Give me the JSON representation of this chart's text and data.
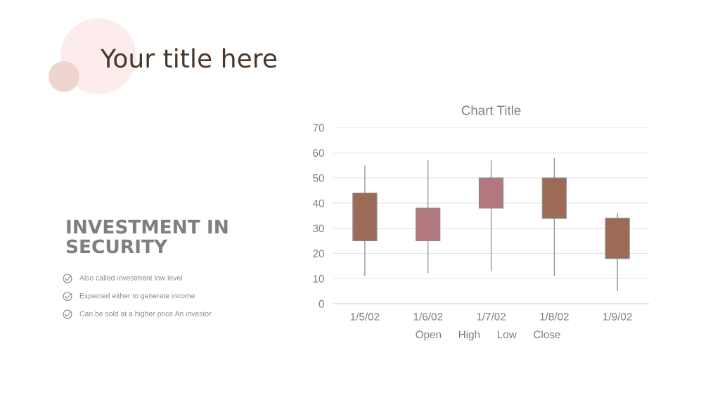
{
  "chart_data": [
    {
      "type": "other",
      "title": "Your title here",
      "subtitle": "INVESTMENT IN\nSECURITY",
      "annotations": [
        "Also called investment low level",
        "Expected either to generate income",
        "Can be sold at a higher price An investor"
      ]
    },
    {
      "type": "candlestick",
      "title": "Chart Title",
      "categories": [
        "1/5/02",
        "1/6/02",
        "1/7/02",
        "1/8/02",
        "1/9/02"
      ],
      "ohlc": [
        [
          44,
          55,
          11,
          25
        ],
        [
          25,
          57,
          12,
          38
        ],
        [
          38,
          57,
          13,
          50
        ],
        [
          50,
          58,
          11,
          34
        ],
        [
          34,
          36,
          5,
          18
        ]
      ],
      "colors": [
        "#9b6b57",
        "#b3777f",
        "#b3777f",
        "#9b6b57",
        "#9b6b57"
      ],
      "ylim": [
        0,
        70
      ],
      "yticks": [
        0,
        10,
        20,
        30,
        40,
        50,
        60,
        70
      ],
      "grid": "y",
      "annotations": [
        "Open",
        "High",
        "Low",
        "Close"
      ]
    }
  ]
}
